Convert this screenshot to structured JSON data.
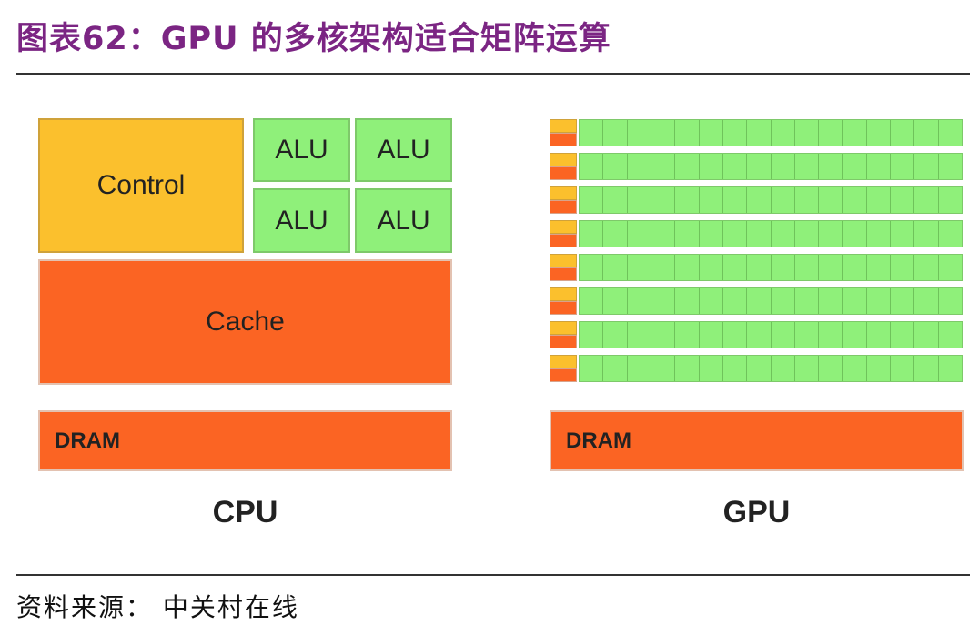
{
  "title": "图表62：GPU 的多核架构适合矩阵运算",
  "source": "资料来源： 中关村在线",
  "cpu": {
    "control": "Control",
    "alu": [
      "ALU",
      "ALU",
      "ALU",
      "ALU"
    ],
    "cache": "Cache",
    "dram": "DRAM",
    "label": "CPU"
  },
  "gpu": {
    "rows": 8,
    "alus_per_row": 16,
    "dram": "DRAM",
    "label": "GPU"
  },
  "colors": {
    "control": "#fbc02d",
    "alu": "#8ff07a",
    "cache_dram": "#fb6423",
    "title": "#7b2583"
  }
}
